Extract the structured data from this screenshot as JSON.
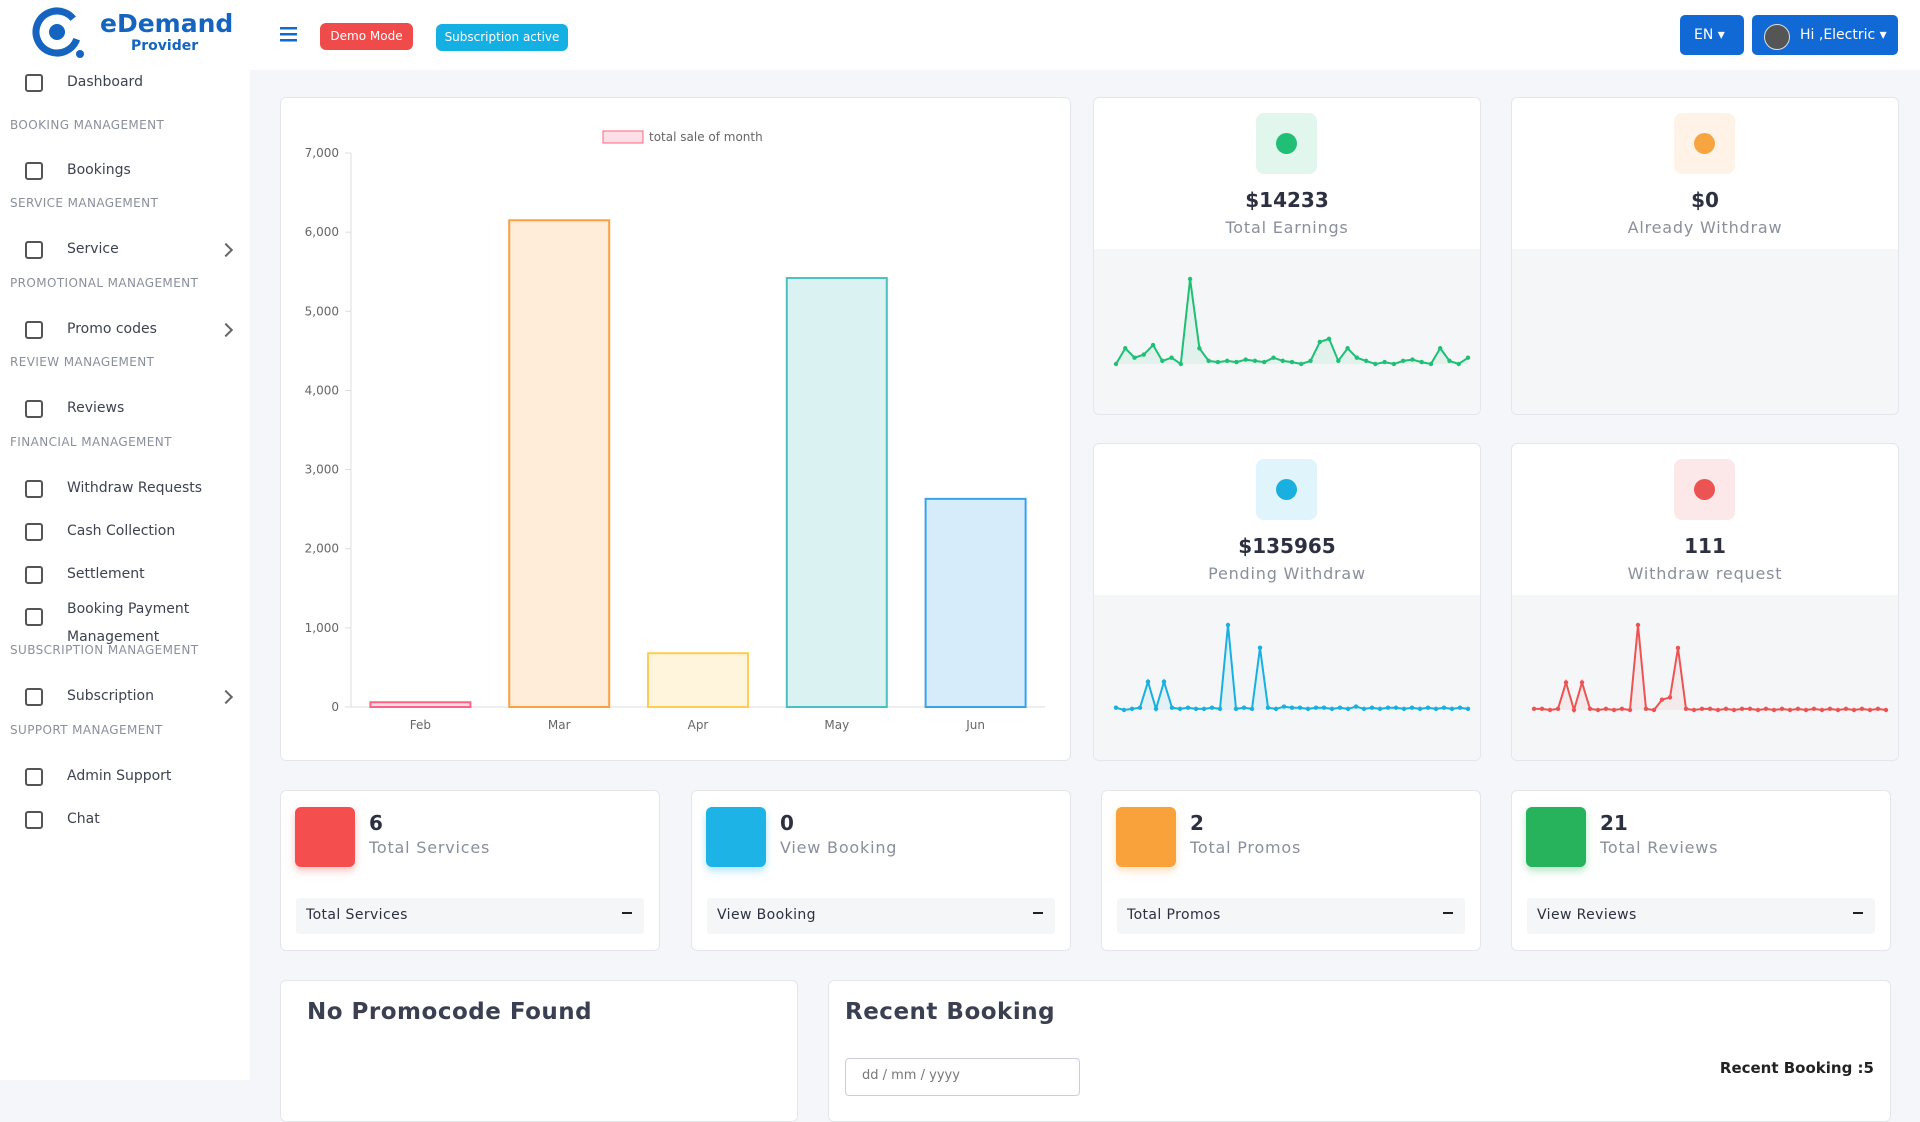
{
  "header": {
    "brand": "eDemand",
    "brand_sub": "Provider",
    "demo_badge": "Demo Mode",
    "subscription_badge": "Subscription active",
    "language": "EN",
    "user": "Hi ,Electric"
  },
  "sidebar": {
    "dashboard": "Dashboard",
    "sections": [
      {
        "heading": "BOOKING MANAGEMENT",
        "items": [
          "Bookings"
        ]
      },
      {
        "heading": "SERVICE MANAGEMENT",
        "items": [
          "Service"
        ]
      },
      {
        "heading": "PROMOTIONAL MANAGEMENT",
        "items": [
          "Promo codes"
        ]
      },
      {
        "heading": "REVIEW MANAGEMENT",
        "items": [
          "Reviews"
        ]
      },
      {
        "heading": "FINANCIAL MANAGEMENT",
        "items": [
          "Withdraw Requests",
          "Cash Collection",
          "Settlement",
          "Booking Payment Management"
        ]
      },
      {
        "heading": "SUBSCRIPTION MANAGEMENT",
        "items": [
          "Subscription"
        ]
      },
      {
        "heading": "SUPPORT MANAGEMENT",
        "items": [
          "Admin Support",
          "Chat"
        ]
      }
    ]
  },
  "sales_chart": {
    "type": "bar",
    "legend": "total sale of month",
    "categories": [
      "Feb",
      "Mar",
      "Apr",
      "May",
      "Jun"
    ],
    "values": [
      60,
      6150,
      680,
      5420,
      2630
    ],
    "colors": [
      "#ff6384",
      "#ff9f40",
      "#ffcd56",
      "#4bc0c0",
      "#36a2eb"
    ],
    "ylim": [
      0,
      7000
    ],
    "yticks": [
      0,
      {
        "value": 1000,
        "label": "1,000"
      },
      {
        "value": 2000,
        "label": "2,000"
      },
      {
        "value": 3000,
        "label": "3,000"
      },
      {
        "value": 4000,
        "label": "4,000"
      },
      {
        "value": 5000,
        "label": "5,000"
      },
      {
        "value": 6000,
        "label": "6,000"
      },
      {
        "value": 7000,
        "label": "7,000"
      }
    ],
    "grid": false
  },
  "stats": [
    {
      "value": "$14233",
      "label": "Total Earnings",
      "color": "#1fbf75",
      "sparkline": [
        5,
        30,
        15,
        20,
        35,
        10,
        15,
        5,
        140,
        30,
        10,
        8,
        10,
        8,
        12,
        10,
        8,
        15,
        10,
        8,
        5,
        10,
        40,
        45,
        10,
        30,
        15,
        10,
        5,
        8,
        5,
        10,
        12,
        8,
        5,
        30,
        10,
        5,
        15
      ]
    },
    {
      "value": "$0",
      "label": "Already Withdraw",
      "color": "#f7a541"
    },
    {
      "value": "$135965",
      "label": "Pending Withdraw",
      "color": "#19b0e0",
      "sparkline": [
        2,
        0,
        1,
        2,
        25,
        1,
        25,
        2,
        1,
        2,
        1,
        1,
        2,
        1,
        75,
        1,
        2,
        1,
        55,
        2,
        1,
        3,
        2,
        2,
        1,
        2,
        2,
        1,
        2,
        1,
        3,
        1,
        2,
        1,
        2,
        2,
        1,
        2,
        1,
        2,
        1,
        2,
        1,
        2,
        1
      ]
    },
    {
      "value": "111",
      "label": "Withdraw request",
      "color": "#ec5454",
      "sparkline": [
        2,
        2,
        1,
        2,
        25,
        1,
        25,
        2,
        1,
        2,
        1,
        2,
        1,
        75,
        2,
        1,
        10,
        12,
        55,
        2,
        1,
        2,
        2,
        1,
        2,
        1,
        2,
        2,
        1,
        2,
        1,
        2,
        1,
        2,
        1,
        2,
        1,
        2,
        1,
        2,
        1,
        2,
        1,
        2,
        1
      ]
    }
  ],
  "counters": [
    {
      "value": "6",
      "label": "Total Services",
      "link": "Total Services"
    },
    {
      "value": "0",
      "label": "View Booking",
      "link": "View Booking"
    },
    {
      "value": "2",
      "label": "Total Promos",
      "link": "Total Promos"
    },
    {
      "value": "21",
      "label": "Total Reviews",
      "link": "View Reviews"
    }
  ],
  "promo_card": {
    "title": "No Promocode Found"
  },
  "recent_booking": {
    "title": "Recent Booking",
    "date_placeholder": "dd / mm / yyyy",
    "count": "Recent Booking :5"
  }
}
